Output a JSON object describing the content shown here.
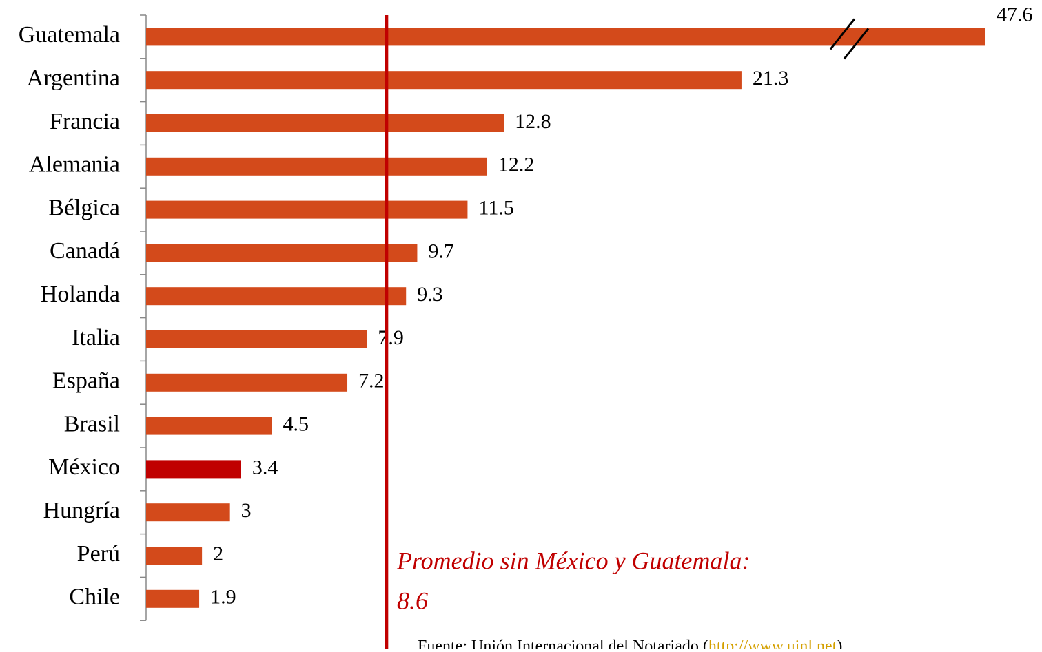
{
  "chart_data": {
    "type": "bar",
    "orientation": "horizontal",
    "categories": [
      "Guatemala",
      "Argentina",
      "Francia",
      "Alemania",
      "Bélgica",
      "Canadá",
      "Holanda",
      "Italia",
      "España",
      "Brasil",
      "México",
      "Hungría",
      "Perú",
      "Chile"
    ],
    "values": [
      47.6,
      21.3,
      12.8,
      12.2,
      11.5,
      9.7,
      9.3,
      7.9,
      7.2,
      4.5,
      3.4,
      3,
      2,
      1.9
    ],
    "colors": [
      "#d34a1b",
      "#d34a1b",
      "#d34a1b",
      "#d34a1b",
      "#d34a1b",
      "#d34a1b",
      "#d34a1b",
      "#d34a1b",
      "#d34a1b",
      "#d34a1b",
      "#c00000",
      "#d34a1b",
      "#d34a1b",
      "#d34a1b"
    ],
    "axis_break": true,
    "reference_line": {
      "value": 8.6,
      "label": "Promedio sin México y Guatemala:",
      "value_label": "8.6",
      "color": "#c00000"
    },
    "source": {
      "text": "Fuente: Unión Internacional del Notariado (",
      "link": "http://www.uinl.net",
      "end": ")"
    }
  }
}
